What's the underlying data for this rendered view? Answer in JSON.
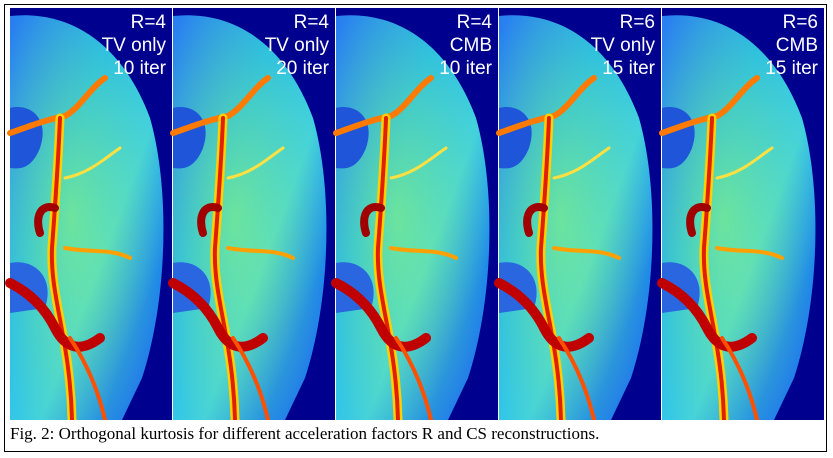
{
  "figure": {
    "panels": [
      {
        "lines": [
          "R=4",
          "TV only",
          "10 iter"
        ]
      },
      {
        "lines": [
          "R=4",
          "TV only",
          "20 iter"
        ]
      },
      {
        "lines": [
          "R=4",
          "CMB",
          "10 iter"
        ]
      },
      {
        "lines": [
          "R=6",
          "TV only",
          "15 iter"
        ]
      },
      {
        "lines": [
          "R=6",
          "CMB",
          "15 iter"
        ]
      }
    ],
    "caption": "Fig. 2: Orthogonal kurtosis for different acceleration factors R and CS reconstructions."
  }
}
